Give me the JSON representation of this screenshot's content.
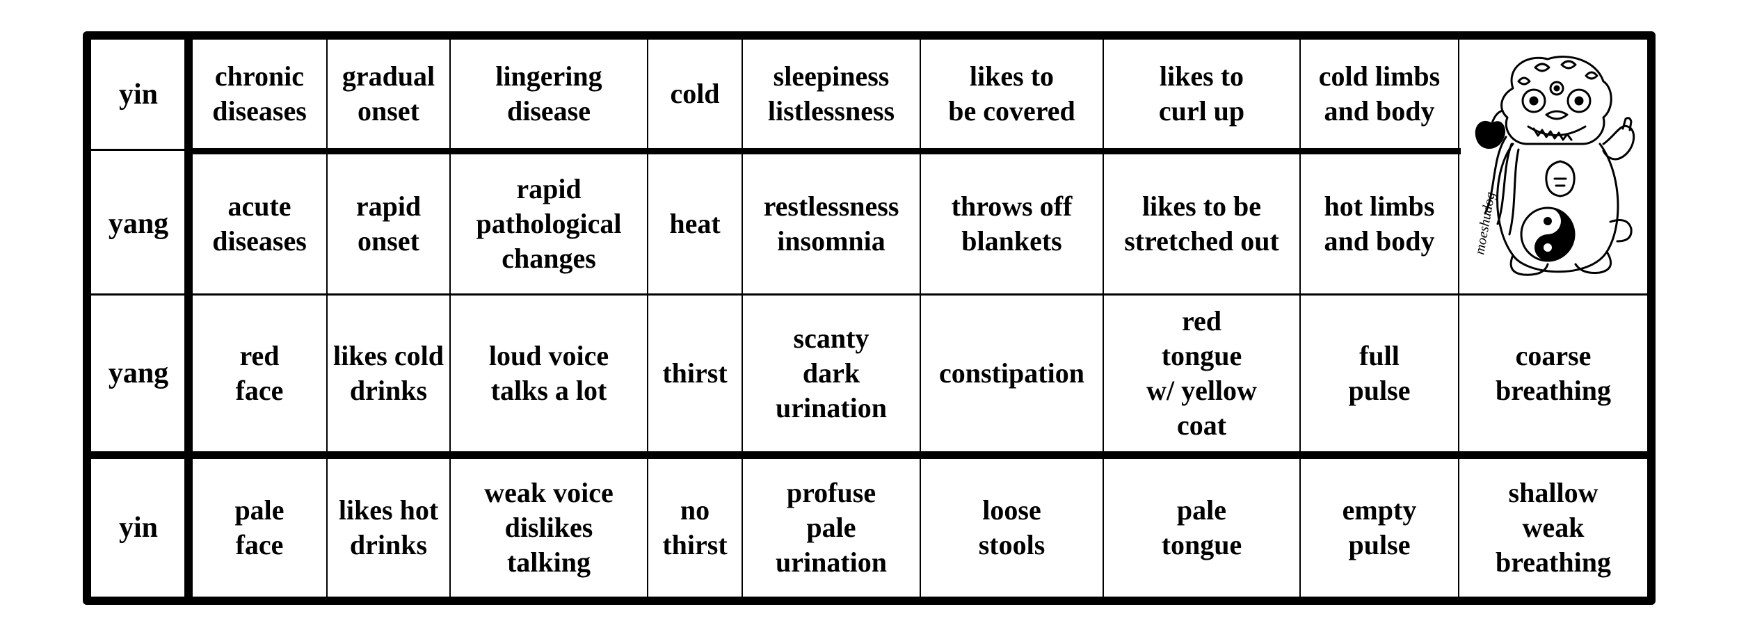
{
  "rows": [
    {
      "label": "yin",
      "cells": [
        "chronic\ndiseases",
        "gradual\nonset",
        "lingering\ndisease",
        "cold",
        "sleepiness\nlistlessness",
        "likes to\nbe covered",
        "likes to\ncurl up",
        "cold limbs\nand body"
      ]
    },
    {
      "label": "yang",
      "cells": [
        "acute\ndiseases",
        "rapid\nonset",
        "rapid\npathological\nchanges",
        "heat",
        "restlessness\ninsomnia",
        "throws off\nblankets",
        "likes to be\nstretched out",
        "hot limbs\nand body"
      ]
    },
    {
      "label": "yang",
      "cells": [
        "red\nface",
        "likes cold\ndrinks",
        "loud voice\ntalks a lot",
        "thirst",
        "scanty\ndark\nurination",
        "constipation",
        "red\ntongue\nw/ yellow\ncoat",
        "full\npulse",
        "coarse\nbreathing"
      ]
    },
    {
      "label": "yin",
      "cells": [
        "pale\nface",
        "likes hot\ndrinks",
        "weak voice\ndislikes\ntalking",
        "no\nthirst",
        "profuse\npale\nurination",
        "loose\nstools",
        "pale\ntongue",
        "empty\npulse",
        "shallow\nweak\nbreathing"
      ]
    }
  ],
  "mascot": {
    "icon": "foo-dog-yin-yang-icon",
    "signature": "moeshudog"
  }
}
